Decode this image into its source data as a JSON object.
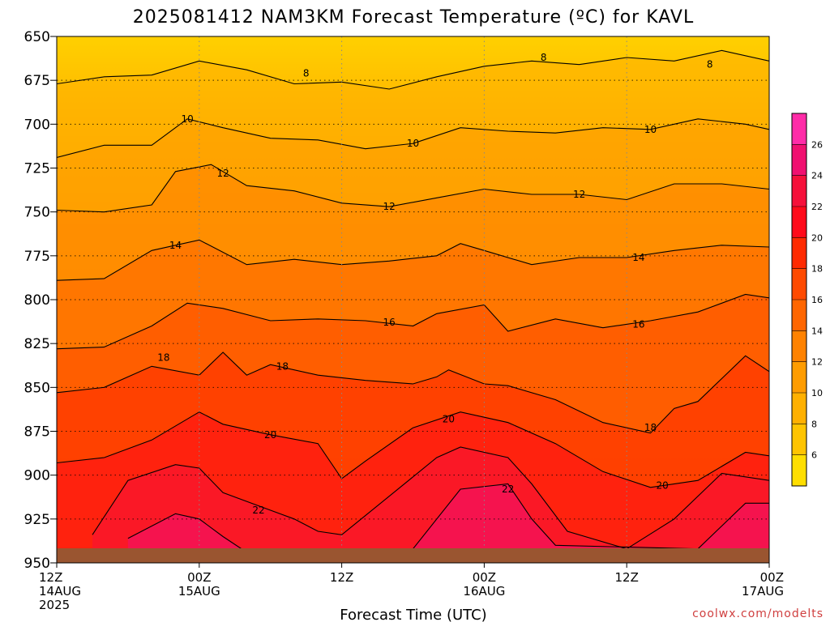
{
  "chart_data": {
    "type": "heatmap",
    "title": "2025081412 NAM3KM Forecast Temperature (ºC) for KAVL",
    "xlabel": "Forecast Time (UTC)",
    "ylabel": "",
    "credit": "coolwx.com/modelts",
    "x_ticks": [
      {
        "hour": 0,
        "lines": [
          "12Z",
          "14AUG",
          "2025"
        ]
      },
      {
        "hour": 12,
        "lines": [
          "00Z",
          "15AUG"
        ]
      },
      {
        "hour": 24,
        "lines": [
          "12Z"
        ]
      },
      {
        "hour": 36,
        "lines": [
          "00Z",
          "16AUG"
        ]
      },
      {
        "hour": 48,
        "lines": [
          "12Z"
        ]
      },
      {
        "hour": 60,
        "lines": [
          "00Z",
          "17AUG"
        ]
      }
    ],
    "x_range_hours": [
      0,
      60
    ],
    "y_ticks": [
      650,
      675,
      700,
      725,
      750,
      775,
      800,
      825,
      850,
      875,
      900,
      925,
      950
    ],
    "y_range_hpa": [
      650,
      950
    ],
    "colorbar": {
      "min": 4,
      "max": 28,
      "ticks": [
        6,
        8,
        10,
        12,
        14,
        16,
        18,
        20,
        22,
        24,
        26
      ],
      "colors": [
        "#ffde00",
        "#ffc400",
        "#ffb000",
        "#ff9c00",
        "#ff8200",
        "#ff6600",
        "#ff4a00",
        "#ff2a00",
        "#ff0a1a",
        "#f5103a",
        "#f01070",
        "#ff2ca8"
      ]
    },
    "isotherms": [
      {
        "value": 8,
        "labels": [
          [
            41,
            662
          ],
          [
            21,
            671
          ],
          [
            55,
            666
          ]
        ],
        "points": [
          [
            0,
            677
          ],
          [
            4,
            673
          ],
          [
            8,
            672
          ],
          [
            12,
            664
          ],
          [
            16,
            669
          ],
          [
            20,
            677
          ],
          [
            24,
            676
          ],
          [
            28,
            680
          ],
          [
            32,
            673
          ],
          [
            36,
            667
          ],
          [
            40,
            664
          ],
          [
            44,
            666
          ],
          [
            48,
            662
          ],
          [
            52,
            664
          ],
          [
            56,
            658
          ],
          [
            60,
            664
          ]
        ]
      },
      {
        "value": 10,
        "labels": [
          [
            11,
            697
          ],
          [
            30,
            711
          ],
          [
            50,
            703
          ]
        ],
        "points": [
          [
            0,
            719
          ],
          [
            4,
            712
          ],
          [
            8,
            712
          ],
          [
            11,
            697
          ],
          [
            14,
            702
          ],
          [
            18,
            708
          ],
          [
            22,
            709
          ],
          [
            26,
            714
          ],
          [
            30,
            711
          ],
          [
            34,
            702
          ],
          [
            38,
            704
          ],
          [
            42,
            705
          ],
          [
            46,
            702
          ],
          [
            50,
            703
          ],
          [
            54,
            697
          ],
          [
            58,
            700
          ],
          [
            60,
            703
          ]
        ]
      },
      {
        "value": 12,
        "labels": [
          [
            14,
            728
          ],
          [
            28,
            747
          ],
          [
            44,
            740
          ]
        ],
        "points": [
          [
            0,
            749
          ],
          [
            4,
            750
          ],
          [
            8,
            746
          ],
          [
            10,
            727
          ],
          [
            13,
            723
          ],
          [
            16,
            735
          ],
          [
            20,
            738
          ],
          [
            24,
            745
          ],
          [
            28,
            747
          ],
          [
            32,
            742
          ],
          [
            36,
            737
          ],
          [
            40,
            740
          ],
          [
            44,
            740
          ],
          [
            48,
            743
          ],
          [
            52,
            734
          ],
          [
            56,
            734
          ],
          [
            60,
            737
          ]
        ]
      },
      {
        "value": 14,
        "labels": [
          [
            10,
            769
          ],
          [
            49,
            776
          ]
        ],
        "points": [
          [
            0,
            789
          ],
          [
            4,
            788
          ],
          [
            8,
            772
          ],
          [
            12,
            766
          ],
          [
            16,
            780
          ],
          [
            20,
            777
          ],
          [
            24,
            780
          ],
          [
            28,
            778
          ],
          [
            32,
            775
          ],
          [
            34,
            768
          ],
          [
            36,
            772
          ],
          [
            40,
            780
          ],
          [
            44,
            776
          ],
          [
            48,
            776
          ],
          [
            52,
            772
          ],
          [
            56,
            769
          ],
          [
            60,
            770
          ]
        ]
      },
      {
        "value": 16,
        "labels": [
          [
            28,
            813
          ],
          [
            49,
            814
          ]
        ],
        "points": [
          [
            0,
            828
          ],
          [
            4,
            827
          ],
          [
            8,
            815
          ],
          [
            11,
            802
          ],
          [
            14,
            805
          ],
          [
            18,
            812
          ],
          [
            22,
            811
          ],
          [
            26,
            812
          ],
          [
            30,
            815
          ],
          [
            32,
            808
          ],
          [
            36,
            803
          ],
          [
            38,
            818
          ],
          [
            42,
            811
          ],
          [
            46,
            816
          ],
          [
            50,
            812
          ],
          [
            54,
            807
          ],
          [
            58,
            797
          ],
          [
            60,
            799
          ]
        ]
      },
      {
        "value": 18,
        "labels": [
          [
            9,
            833
          ],
          [
            19,
            838
          ],
          [
            50,
            873
          ]
        ],
        "points": [
          [
            0,
            853
          ],
          [
            4,
            850
          ],
          [
            8,
            838
          ],
          [
            12,
            843
          ],
          [
            14,
            830
          ],
          [
            16,
            843
          ],
          [
            18,
            837
          ],
          [
            22,
            843
          ],
          [
            26,
            846
          ],
          [
            30,
            848
          ],
          [
            32,
            844
          ],
          [
            33,
            840
          ],
          [
            36,
            848
          ],
          [
            38,
            849
          ],
          [
            42,
            857
          ],
          [
            46,
            870
          ],
          [
            50,
            876
          ],
          [
            52,
            862
          ],
          [
            54,
            858
          ],
          [
            58,
            832
          ],
          [
            60,
            841
          ]
        ]
      },
      {
        "value": 20,
        "labels": [
          [
            18,
            877
          ],
          [
            33,
            868
          ],
          [
            51,
            906
          ]
        ],
        "points": [
          [
            0,
            893
          ],
          [
            4,
            890
          ],
          [
            8,
            880
          ],
          [
            12,
            864
          ],
          [
            14,
            871
          ],
          [
            18,
            877
          ],
          [
            22,
            882
          ],
          [
            24,
            902
          ],
          [
            26,
            892
          ],
          [
            30,
            873
          ],
          [
            34,
            864
          ],
          [
            38,
            870
          ],
          [
            42,
            882
          ],
          [
            46,
            898
          ],
          [
            50,
            907
          ],
          [
            54,
            903
          ],
          [
            58,
            887
          ],
          [
            60,
            889
          ]
        ]
      },
      {
        "value": 22,
        "labels": [
          [
            17,
            920
          ],
          [
            38,
            908
          ]
        ],
        "points": [
          [
            3,
            934
          ],
          [
            6,
            903
          ],
          [
            10,
            894
          ],
          [
            12,
            896
          ],
          [
            14,
            910
          ],
          [
            18,
            920
          ],
          [
            20,
            925
          ],
          [
            22,
            932
          ],
          [
            24,
            934
          ],
          [
            28,
            912
          ],
          [
            32,
            890
          ],
          [
            34,
            884
          ],
          [
            38,
            890
          ],
          [
            40,
            905
          ],
          [
            43,
            932
          ],
          [
            48,
            942
          ],
          [
            52,
            925
          ],
          [
            56,
            899
          ],
          [
            60,
            903
          ]
        ]
      },
      {
        "value": 24,
        "labels": [],
        "points": [
          [
            6,
            936
          ],
          [
            10,
            922
          ],
          [
            12,
            925
          ],
          [
            14,
            935
          ],
          [
            16,
            944
          ],
          [
            30,
            942
          ],
          [
            34,
            908
          ],
          [
            38,
            905
          ],
          [
            40,
            925
          ],
          [
            42,
            940
          ],
          [
            54,
            942
          ],
          [
            58,
            916
          ],
          [
            60,
            916
          ]
        ]
      }
    ]
  }
}
